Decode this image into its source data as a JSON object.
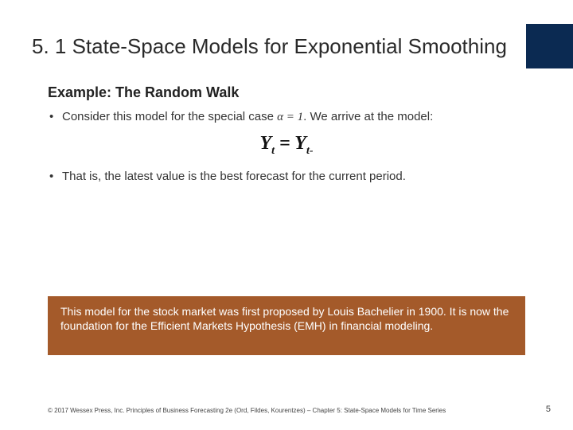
{
  "colors": {
    "title_band": "#0b2a52",
    "callout_bg": "#a45a2a",
    "callout_text": "#ffffff",
    "body_text": "#333333",
    "slide_bg": "#ffffff"
  },
  "typography": {
    "title_fontsize": 26,
    "example_title_fontsize": 18,
    "bullet_fontsize": 15,
    "equation_fontsize": 24,
    "callout_fontsize": 14,
    "footer_fontsize": 8,
    "pagenum_fontsize": 11
  },
  "title": "5. 1 State-Space Models for Exponential Smoothing",
  "example_title": "Example: The Random Walk",
  "bullets": {
    "b1_prefix": "Consider this model for the special case ",
    "b1_alpha": "α = 1",
    "b1_suffix": ". We arrive at the model:",
    "b2": "That is, the latest value is the best forecast for the current period."
  },
  "equation": {
    "lhs_var": "Y",
    "lhs_sub": "t",
    "eq": " = ",
    "rhs_var": "Y",
    "rhs_sub": "t-"
  },
  "callout": "This model for the stock market was first proposed by Louis Bachelier in 1900. It is now the foundation for the Efficient Markets Hypothesis (EMH) in financial modeling.",
  "footer": "© 2017 Wessex Press, Inc. Principles of Business Forecasting 2e (Ord, Fildes, Kourentzes) – Chapter 5: State-Space Models for Time Series",
  "page_number": "5"
}
